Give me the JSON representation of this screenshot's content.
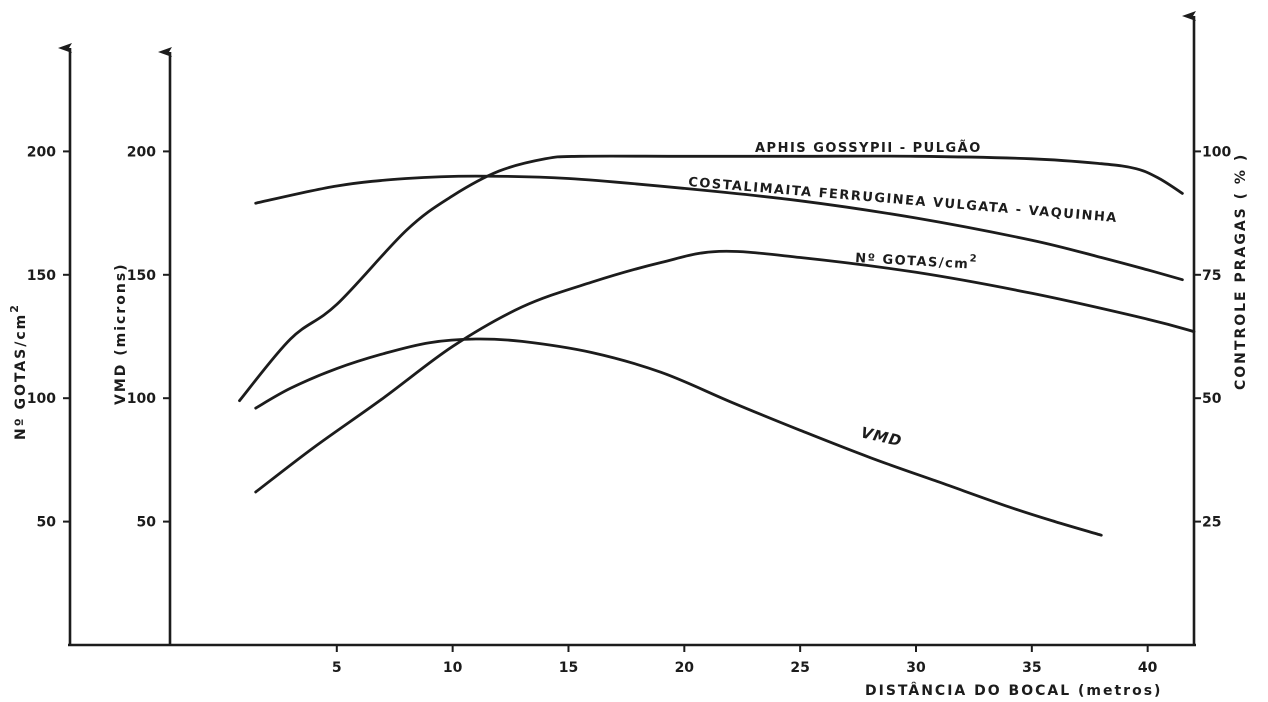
{
  "chart_data": {
    "type": "line",
    "xlabel": "DISTÂNCIA DO BOCAL (metros)",
    "x_ticks": [
      "5",
      "10",
      "15",
      "20",
      "25",
      "30",
      "35",
      "40"
    ],
    "xlim": [
      -2.2,
      42
    ],
    "axes": {
      "gotas": {
        "label": "Nº GOTAS/cm",
        "label_sup": "2",
        "ticks": [
          "50",
          "100",
          "150",
          "200"
        ],
        "range": [
          0,
          250
        ]
      },
      "vmd": {
        "label": "VMD (microns)",
        "ticks": [
          "50",
          "100",
          "150",
          "200"
        ],
        "range": [
          0,
          250
        ]
      },
      "controle": {
        "label": "CONTROLE PRAGAS ( % )",
        "ticks": [
          "25",
          "50",
          "75",
          "100"
        ],
        "range": [
          0,
          125
        ]
      }
    },
    "series": [
      {
        "name": "APHIS GOSSYPII - PULGÃO",
        "axis": "controle",
        "points": [
          [
            0.8,
            49.5
          ],
          [
            3,
            62
          ],
          [
            5,
            69
          ],
          [
            8,
            84
          ],
          [
            10,
            91
          ],
          [
            12,
            96
          ],
          [
            14,
            98.5
          ],
          [
            15.5,
            99
          ],
          [
            20,
            99
          ],
          [
            25,
            99
          ],
          [
            30,
            99
          ],
          [
            35,
            98.5
          ],
          [
            38,
            97.5
          ],
          [
            39.5,
            96.5
          ],
          [
            40.5,
            94.5
          ],
          [
            41.5,
            91.5
          ]
        ]
      },
      {
        "name": "COSTALIMAITA FERRUGINEA VULGATA - VAQUINHA",
        "axis": "controle",
        "points": [
          [
            1.5,
            89.5
          ],
          [
            5,
            93
          ],
          [
            8,
            94.5
          ],
          [
            11,
            95
          ],
          [
            15,
            94.5
          ],
          [
            20,
            92.5
          ],
          [
            25,
            90
          ],
          [
            30,
            86.5
          ],
          [
            35,
            82
          ],
          [
            38,
            78.5
          ],
          [
            40,
            76
          ],
          [
            41.5,
            74
          ]
        ]
      },
      {
        "name": "Nº GOTAS/cm",
        "name_sup": "2",
        "axis": "gotas",
        "points": [
          [
            1.5,
            96
          ],
          [
            3,
            104
          ],
          [
            5,
            112
          ],
          [
            7,
            118
          ],
          [
            9,
            122.5
          ],
          [
            11,
            124
          ],
          [
            13,
            123
          ],
          [
            16,
            118.5
          ],
          [
            19,
            110.5
          ],
          [
            22,
            98.5
          ],
          [
            25,
            87
          ],
          [
            28,
            76
          ],
          [
            31,
            66
          ],
          [
            34,
            56
          ],
          [
            36,
            50
          ],
          [
            38,
            44.5
          ]
        ]
      },
      {
        "name": "VMD",
        "axis": "vmd",
        "points": [
          [
            1.5,
            62
          ],
          [
            4,
            80
          ],
          [
            7,
            100
          ],
          [
            10,
            121
          ],
          [
            13,
            137
          ],
          [
            16,
            147
          ],
          [
            19,
            155
          ],
          [
            21.5,
            159.5
          ],
          [
            25,
            157
          ],
          [
            30,
            151
          ],
          [
            35,
            142.5
          ],
          [
            40,
            132
          ],
          [
            42,
            127
          ]
        ]
      }
    ]
  }
}
